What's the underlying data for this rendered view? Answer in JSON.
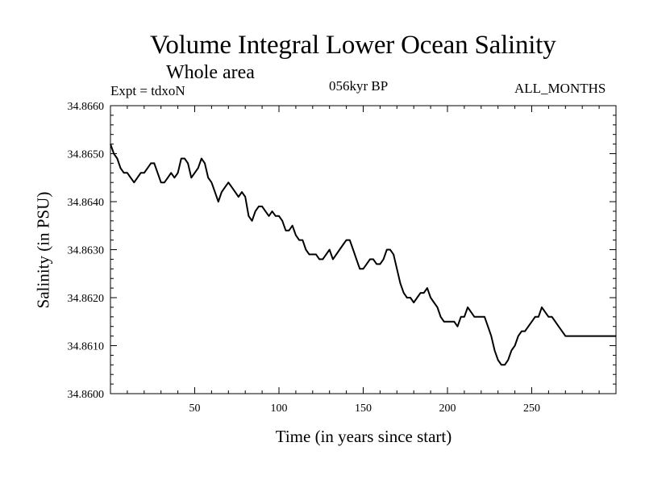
{
  "chart_data": {
    "type": "line",
    "title": "Volume Integral Lower Ocean Salinity",
    "subtitle": "Whole area",
    "annotations": {
      "experiment": "Expt = tdxoN",
      "period": "056kyr BP",
      "months": "ALL_MONTHS"
    },
    "xlabel": "Time (in years since start)",
    "ylabel": "Salinity (in PSU)",
    "xlim": [
      0,
      300
    ],
    "ylim": [
      34.86,
      34.866
    ],
    "xticks": [
      50,
      100,
      150,
      200,
      250
    ],
    "yticks": [
      "34.8600",
      "34.8610",
      "34.8620",
      "34.8630",
      "34.8640",
      "34.8650",
      "34.8660"
    ],
    "grid": false,
    "series": [
      {
        "color": "#000000",
        "x": [
          0,
          2,
          4,
          6,
          8,
          10,
          12,
          14,
          16,
          18,
          20,
          22,
          24,
          26,
          28,
          30,
          32,
          34,
          36,
          38,
          40,
          42,
          44,
          46,
          48,
          50,
          52,
          54,
          56,
          58,
          60,
          62,
          64,
          66,
          68,
          70,
          72,
          74,
          76,
          78,
          80,
          82,
          84,
          86,
          88,
          90,
          92,
          94,
          96,
          98,
          100,
          102,
          104,
          106,
          108,
          110,
          112,
          114,
          116,
          118,
          120,
          122,
          124,
          126,
          128,
          130,
          132,
          134,
          136,
          138,
          140,
          142,
          144,
          146,
          148,
          150,
          152,
          154,
          156,
          158,
          160,
          162,
          164,
          166,
          168,
          170,
          172,
          174,
          176,
          178,
          180,
          182,
          184,
          186,
          188,
          190,
          192,
          194,
          196,
          198,
          200,
          202,
          204,
          206,
          208,
          210,
          212,
          214,
          216,
          218,
          220,
          222,
          224,
          226,
          228,
          230,
          232,
          234,
          236,
          238,
          240,
          242,
          244,
          246,
          248,
          250,
          252,
          254,
          256,
          258,
          260,
          262,
          264,
          266,
          268,
          270,
          272,
          274,
          276,
          278,
          280,
          282,
          284,
          286,
          288,
          290,
          292,
          294,
          296,
          298,
          300
        ],
        "y": [
          34.8652,
          34.865,
          34.8649,
          34.8647,
          34.8646,
          34.8646,
          34.8645,
          34.8644,
          34.8645,
          34.8646,
          34.8646,
          34.8647,
          34.8648,
          34.8648,
          34.8646,
          34.8644,
          34.8644,
          34.8645,
          34.8646,
          34.8645,
          34.8646,
          34.8649,
          34.8649,
          34.8648,
          34.8645,
          34.8646,
          34.8647,
          34.8649,
          34.8648,
          34.8645,
          34.8644,
          34.8642,
          34.864,
          34.8642,
          34.8643,
          34.8644,
          34.8643,
          34.8642,
          34.8641,
          34.8642,
          34.8641,
          34.8637,
          34.8636,
          34.8638,
          34.8639,
          34.8639,
          34.8638,
          34.8637,
          34.8638,
          34.8637,
          34.8637,
          34.8636,
          34.8634,
          34.8634,
          34.8635,
          34.8633,
          34.8632,
          34.8632,
          34.863,
          34.8629,
          34.8629,
          34.8629,
          34.8628,
          34.8628,
          34.8629,
          34.863,
          34.8628,
          34.8629,
          34.863,
          34.8631,
          34.8632,
          34.8632,
          34.863,
          34.8628,
          34.8626,
          34.8626,
          34.8627,
          34.8628,
          34.8628,
          34.8627,
          34.8627,
          34.8628,
          34.863,
          34.863,
          34.8629,
          34.8626,
          34.8623,
          34.8621,
          34.862,
          34.862,
          34.8619,
          34.862,
          34.8621,
          34.8621,
          34.8622,
          34.862,
          34.8619,
          34.8618,
          34.8616,
          34.8615,
          34.8615,
          34.8615,
          34.8615,
          34.8614,
          34.8616,
          34.8616,
          34.8618,
          34.8617,
          34.8616,
          34.8616,
          34.8616,
          34.8616,
          34.8614,
          34.8612,
          34.8609,
          34.8607,
          34.8606,
          34.8606,
          34.8607,
          34.8609,
          34.861,
          34.8612,
          34.8613,
          34.8613,
          34.8614,
          34.8615,
          34.8616,
          34.8616,
          34.8618,
          34.8617,
          34.8616,
          34.8616,
          34.8615,
          34.8614,
          34.8613,
          34.8612,
          34.8612,
          34.8612,
          34.8612,
          34.8612,
          34.8612,
          34.8612,
          34.8612,
          34.8612,
          34.8612,
          34.8612,
          34.8612,
          34.8612,
          34.8612,
          34.8612,
          34.8612
        ]
      }
    ]
  }
}
